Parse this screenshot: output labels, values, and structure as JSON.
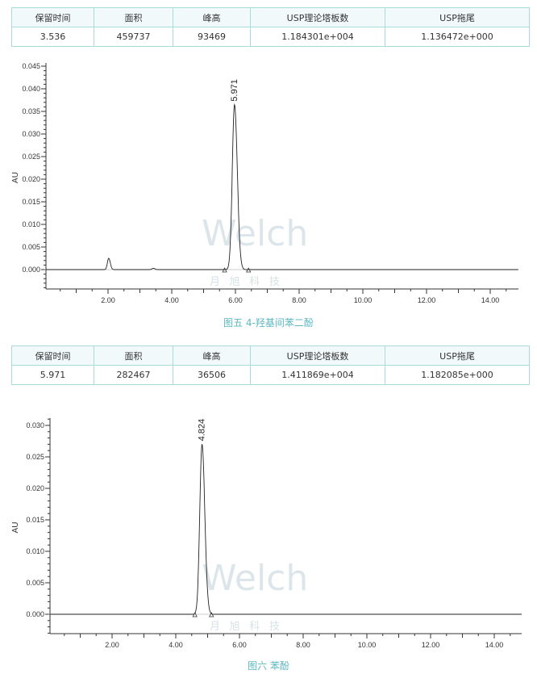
{
  "tables": [
    {
      "headers": [
        "保留时间",
        "面积",
        "峰高",
        "USP理论塔板数",
        "USP拖尾"
      ],
      "row": [
        "3.536",
        "459737",
        "93469",
        "1.184301e+004",
        "1.136472e+000"
      ]
    },
    {
      "headers": [
        "保留时间",
        "面积",
        "峰高",
        "USP理论塔板数",
        "USP拖尾"
      ],
      "row": [
        "5.971",
        "282467",
        "36506",
        "1.411869e+004",
        "1.182085e+000"
      ]
    }
  ],
  "watermark": {
    "brand": "Welch",
    "chinese": "月 旭 科 技"
  },
  "chart_data": [
    {
      "type": "line",
      "caption": "图五 4-羟基间苯二酚",
      "ylabel": "AU",
      "xlabel": "",
      "xlim": [
        0,
        14.9
      ],
      "ylim": [
        -0.0043,
        0.045
      ],
      "xticks": [
        "2.00",
        "4.00",
        "6.00",
        "8.00",
        "10.00",
        "12.00",
        "14.00"
      ],
      "yticks": [
        "0.000",
        "0.005",
        "0.010",
        "0.015",
        "0.020",
        "0.025",
        "0.030",
        "0.035",
        "0.040",
        "0.045"
      ],
      "peaks": [
        {
          "x": 2.02,
          "y": 0.0025
        },
        {
          "x": 3.42,
          "y": 0.0003
        },
        {
          "x": 5.971,
          "y": 0.0365,
          "label": "5.971"
        }
      ],
      "markers_x": [
        5.66,
        6.41
      ],
      "grid": false
    },
    {
      "type": "line",
      "caption": "图六 苯酚",
      "ylabel": "AU",
      "xlabel": "",
      "xlim": [
        0,
        15
      ],
      "ylim": [
        -0.003,
        0.0315
      ],
      "xticks": [
        "2.00",
        "4.00",
        "6.00",
        "8.00",
        "10.00",
        "12.00",
        "14.00"
      ],
      "yticks": [
        "0.000",
        "0.005",
        "0.010",
        "0.015",
        "0.020",
        "0.025",
        "0.030"
      ],
      "peaks": [
        {
          "x": 4.824,
          "y": 0.027,
          "label": "4.824"
        }
      ],
      "markers_x": [
        4.6,
        5.12
      ],
      "grid": false
    }
  ]
}
